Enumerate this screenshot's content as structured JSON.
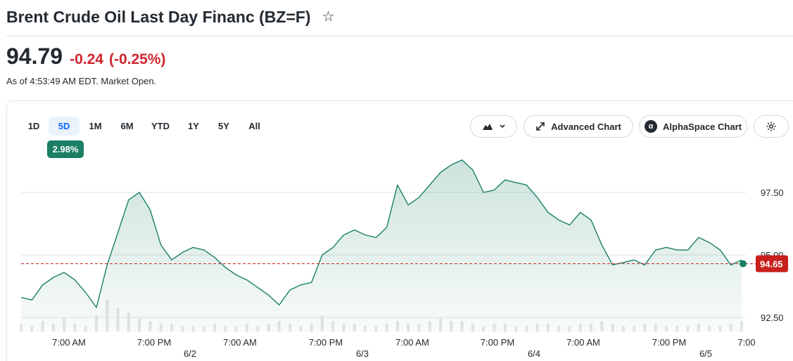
{
  "header": {
    "title": "Brent Crude Oil Last Day Financ (BZ=F)",
    "star_glyph": "☆"
  },
  "quote": {
    "price": "94.79",
    "change": "-0.24",
    "percent": "(-0.25%)",
    "as_of": "As of 4:53:49 AM EDT. Market Open.",
    "change_color": "#d1242f"
  },
  "ranges": {
    "items": [
      "1D",
      "5D",
      "1M",
      "6M",
      "YTD",
      "1Y",
      "5Y",
      "All"
    ],
    "active": "5D",
    "badge": "2.98%"
  },
  "toolbar": {
    "chart_type_icon": "mountain-chart-icon",
    "advanced_chart": "Advanced Chart",
    "alphaspace_chart": "AlphaSpace Chart",
    "alphaspace_logo": "α",
    "settings_icon": "gear-icon"
  },
  "chart_data": {
    "type": "area",
    "line_color": "#1a7f64",
    "fill_color": "#1a7f64",
    "current_price_color": "#c8201c",
    "y_ticks": [
      97.5,
      95.0,
      92.5
    ],
    "y_tick_labels": [
      "97.50",
      "95.00",
      "92.50"
    ],
    "ylim": [
      92.0,
      99.0
    ],
    "x_tick_labels": [
      "7:00 AM",
      "7:00 PM",
      "7:00 AM",
      "7:00 PM",
      "7:00 AM",
      "7:00 PM",
      "7:00 AM",
      "7:00 PM",
      "7:00"
    ],
    "date_labels": [
      "6/2",
      "6/3",
      "6/4",
      "6/5"
    ],
    "current_price": 94.65,
    "current_price_label": "94.65",
    "series": [
      {
        "values": [
          93.3,
          93.2,
          93.8,
          94.1,
          94.3,
          94.0,
          93.5,
          92.9,
          94.6,
          95.9,
          97.2,
          97.5,
          96.8,
          95.4,
          94.8,
          95.1,
          95.3,
          95.2,
          94.9,
          94.5,
          94.2,
          94.0,
          93.7,
          93.4,
          93.0,
          93.6,
          93.8,
          93.9,
          95.0,
          95.3,
          95.8,
          96.0,
          95.8,
          95.7,
          96.1,
          97.8,
          97.0,
          97.3,
          97.8,
          98.3,
          98.6,
          98.8,
          98.4,
          97.5,
          97.6,
          98.0,
          97.9,
          97.8,
          97.3,
          96.7,
          96.4,
          96.2,
          96.7,
          96.4,
          95.4,
          94.6,
          94.7,
          94.8,
          94.6,
          95.2,
          95.3,
          95.2,
          95.2,
          95.7,
          95.5,
          95.2,
          94.6,
          94.8
        ]
      }
    ],
    "volume": [
      3,
      2,
      4,
      3,
      5,
      3,
      2,
      6,
      12,
      9,
      7,
      5,
      4,
      3,
      3,
      2,
      2,
      2,
      3,
      2,
      2,
      3,
      2,
      3,
      4,
      3,
      2,
      3,
      6,
      4,
      3,
      3,
      2,
      2,
      3,
      4,
      3,
      3,
      4,
      5,
      4,
      4,
      3,
      2,
      3,
      3,
      2,
      2,
      3,
      3,
      2,
      2,
      3,
      3,
      4,
      3,
      2,
      2,
      3,
      3,
      2,
      2,
      2,
      3,
      2,
      2,
      3,
      4
    ]
  }
}
